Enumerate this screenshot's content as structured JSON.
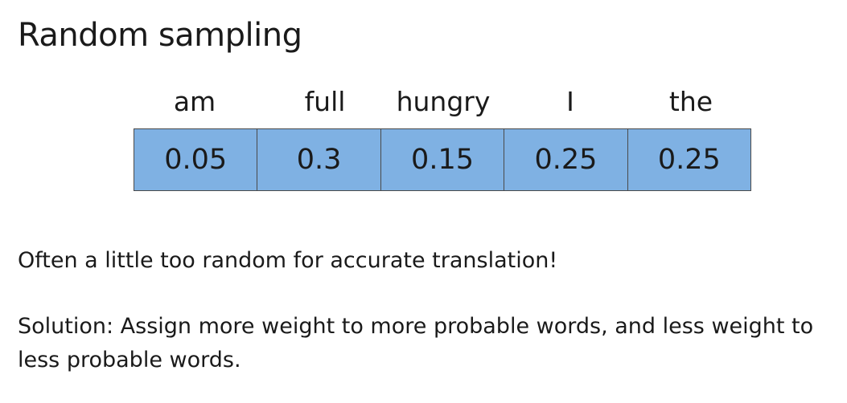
{
  "title": "Random sampling",
  "words": [
    "am",
    "full",
    "hungry",
    "I",
    "the"
  ],
  "probabilities": [
    "0.05",
    "0.3",
    "0.15",
    "0.25",
    "0.25"
  ],
  "note": "Often a little too random for accurate translation!",
  "solution": "Solution: Assign more weight to more probable words, and less weight to less probable words.",
  "colors": {
    "cell_fill": "#7fb1e3",
    "cell_border": "#4a4a4a"
  }
}
